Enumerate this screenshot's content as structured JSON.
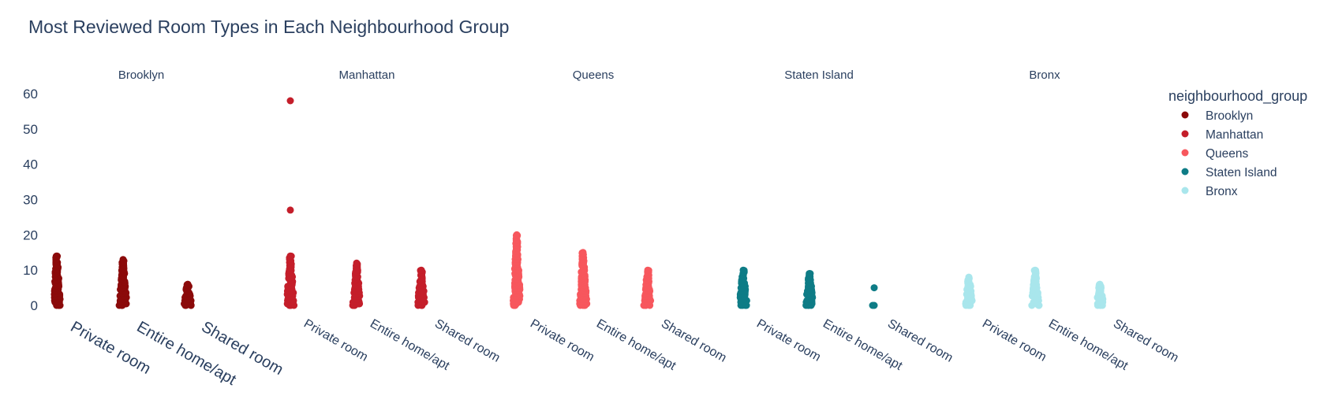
{
  "chart_data": {
    "type": "scatter",
    "title": "Most Reviewed Room Types in Each Neighbourhood Group",
    "ylim": [
      0,
      60
    ],
    "yticks": [
      0,
      10,
      20,
      30,
      40,
      50,
      60
    ],
    "grid": false,
    "legend": {
      "title": "neighbourhood_group",
      "placement": "top-right",
      "entries": [
        "Brooklyn",
        "Manhattan",
        "Queens",
        "Staten Island",
        "Bronx"
      ]
    },
    "categories": [
      "Private room",
      "Entire home/apt",
      "Shared room"
    ],
    "facets": [
      {
        "name": "Brooklyn",
        "color": "#8b0a0a",
        "series": [
          {
            "category": "Private room",
            "max": 14,
            "outliers": []
          },
          {
            "category": "Entire home/apt",
            "max": 13,
            "outliers": []
          },
          {
            "category": "Shared room",
            "max": 6,
            "outliers": []
          }
        ]
      },
      {
        "name": "Manhattan",
        "color": "#c41e2a",
        "series": [
          {
            "category": "Private room",
            "max": 14,
            "outliers": [
              27,
              58
            ]
          },
          {
            "category": "Entire home/apt",
            "max": 12,
            "outliers": []
          },
          {
            "category": "Shared room",
            "max": 10,
            "outliers": []
          }
        ]
      },
      {
        "name": "Queens",
        "color": "#f7575d",
        "series": [
          {
            "category": "Private room",
            "max": 20,
            "outliers": []
          },
          {
            "category": "Entire home/apt",
            "max": 15,
            "outliers": []
          },
          {
            "category": "Shared room",
            "max": 10,
            "outliers": []
          }
        ]
      },
      {
        "name": "Staten Island",
        "color": "#0e7c86",
        "series": [
          {
            "category": "Private room",
            "max": 10,
            "outliers": []
          },
          {
            "category": "Entire home/apt",
            "max": 9,
            "outliers": []
          },
          {
            "category": "Shared room",
            "max": 5,
            "outliers": [
              0,
              5
            ]
          }
        ]
      },
      {
        "name": "Bronx",
        "color": "#a9e6ec",
        "series": [
          {
            "category": "Private room",
            "max": 8,
            "outliers": []
          },
          {
            "category": "Entire home/apt",
            "max": 10,
            "outliers": []
          },
          {
            "category": "Shared room",
            "max": 6,
            "outliers": []
          }
        ]
      }
    ]
  }
}
